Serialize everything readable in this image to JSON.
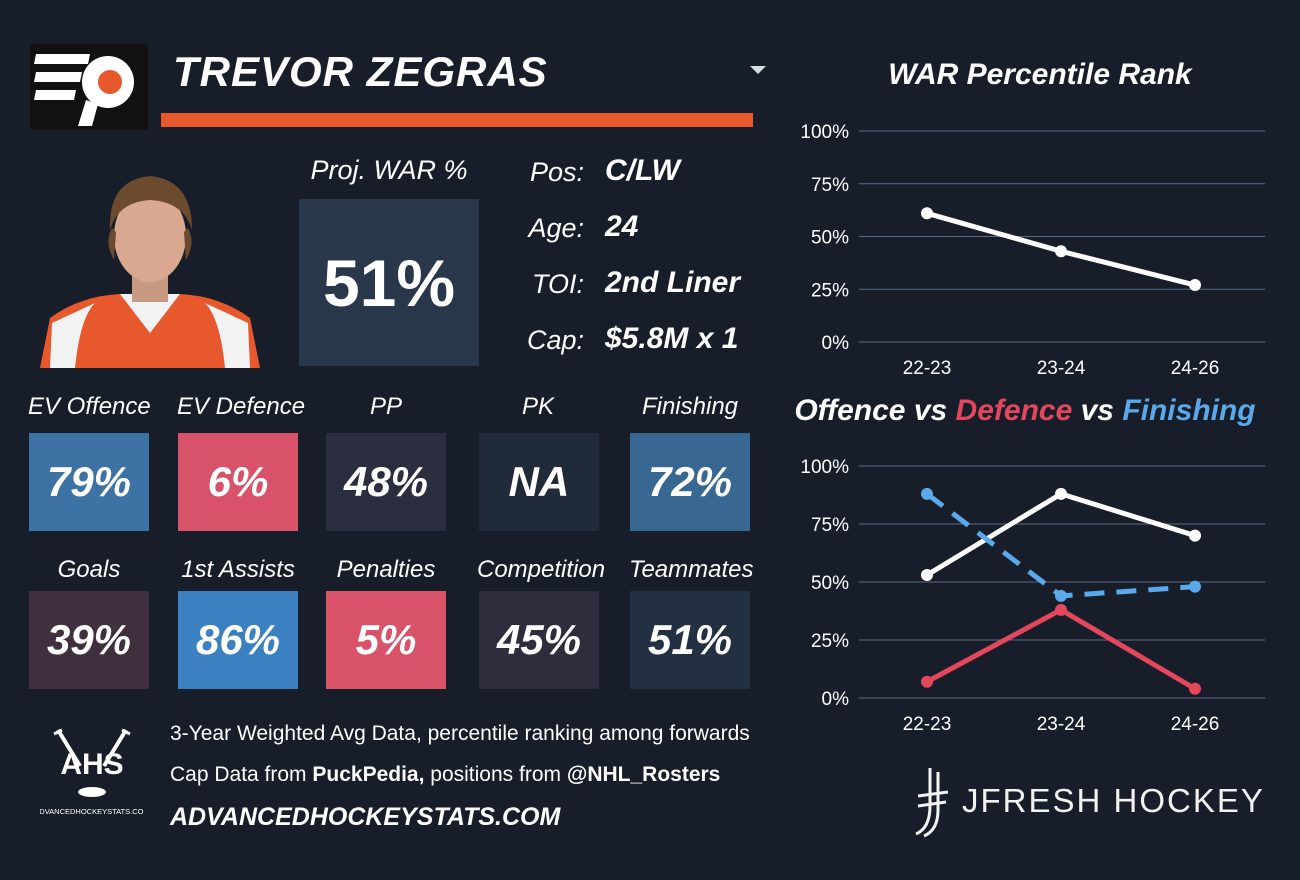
{
  "header": {
    "player_name": "TREVOR ZEGRAS"
  },
  "projection": {
    "label": "Proj. WAR %",
    "value": "51%"
  },
  "info": [
    {
      "label": "Pos:",
      "value": "C/LW"
    },
    {
      "label": "Age:",
      "value": "24"
    },
    {
      "label": "TOI:",
      "value": "2nd Liner"
    },
    {
      "label": "Cap:",
      "value": "$5.8M x 1"
    }
  ],
  "tiles": [
    {
      "label": "EV Offence",
      "value": "79%",
      "color": "#3d72a4"
    },
    {
      "label": "EV Defence",
      "value": "6%",
      "color": "#d8536a"
    },
    {
      "label": "PP",
      "value": "48%",
      "color": "#2b2e3f"
    },
    {
      "label": "PK",
      "value": "NA",
      "color": "#212a38"
    },
    {
      "label": "Finishing",
      "value": "72%",
      "color": "#386891"
    },
    {
      "label": "Goals",
      "value": "39%",
      "color": "#40303f"
    },
    {
      "label": "1st Assists",
      "value": "86%",
      "color": "#3b80c0"
    },
    {
      "label": "Penalties",
      "value": "5%",
      "color": "#d8536a"
    },
    {
      "label": "Competition",
      "value": "45%",
      "color": "#2e2c3d"
    },
    {
      "label": "Teammates",
      "value": "51%",
      "color": "#223042"
    }
  ],
  "footer": {
    "line1": "3-Year Weighted Avg Data, percentile ranking among forwards",
    "line2_a": "Cap Data from ",
    "line2_b": "PuckPedia,",
    "line2_c": " positions from ",
    "line2_d": "@NHL_Rosters",
    "site": "ADVANCEDHOCKEYSTATS.COM",
    "ahs_logo_text": "AHS",
    "ahs_logo_sub": "ADVANCEDHOCKEYSTATS.COM",
    "brand": "JFRESH HOCKEY"
  },
  "chart_data": [
    {
      "type": "line",
      "title": "WAR Percentile Rank",
      "categories": [
        "22-23",
        "23-24",
        "24-26"
      ],
      "series": [
        {
          "values": [
            61,
            43,
            27
          ],
          "color": "#ffffff",
          "dash": false
        }
      ],
      "yticks": [
        "100%",
        "75%",
        "50%",
        "25%",
        "0%"
      ],
      "ylim": [
        0,
        100
      ],
      "grid": true
    },
    {
      "type": "line",
      "title_parts": [
        {
          "text": "Offence",
          "color": "#ffffff"
        },
        {
          "text": " vs ",
          "color": "#ffffff"
        },
        {
          "text": "Defence",
          "color": "#e4475c"
        },
        {
          "text": " vs ",
          "color": "#ffffff"
        },
        {
          "text": "Finishing",
          "color": "#5aa9ea"
        }
      ],
      "categories": [
        "22-23",
        "23-24",
        "24-26"
      ],
      "series": [
        {
          "values": [
            53,
            88,
            70
          ],
          "color": "#ffffff",
          "dash": false
        },
        {
          "values": [
            7,
            38,
            4
          ],
          "color": "#e4475c",
          "dash": false
        },
        {
          "values": [
            88,
            44,
            48
          ],
          "color": "#5aa9ea",
          "dash": true
        }
      ],
      "yticks": [
        "100%",
        "75%",
        "50%",
        "25%",
        "0%"
      ],
      "ylim": [
        0,
        100
      ],
      "grid": true
    }
  ]
}
